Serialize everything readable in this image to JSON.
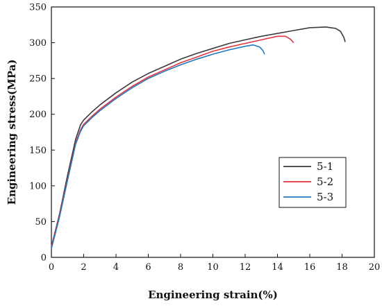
{
  "chart_data": {
    "type": "line",
    "title": "",
    "xlabel": "Engineering strain(%)",
    "ylabel": "Engineering stress(MPa)",
    "xlim": [
      0,
      20
    ],
    "ylim": [
      0,
      350
    ],
    "xticks": [
      0,
      2,
      4,
      6,
      8,
      10,
      12,
      14,
      16,
      18,
      20
    ],
    "yticks": [
      0,
      50,
      100,
      150,
      200,
      250,
      300,
      350
    ],
    "grid": false,
    "legend_position": "right",
    "series": [
      {
        "name": "5-1",
        "color": "#3a3a3a",
        "x": [
          0,
          0.5,
          1.0,
          1.5,
          1.8,
          2.0,
          2.5,
          3,
          4,
          5,
          6,
          7,
          8,
          9,
          10,
          11,
          12,
          13,
          14,
          15,
          16,
          17,
          17.6,
          17.9,
          18.1,
          18.2
        ],
        "y": [
          15,
          60,
          115,
          165,
          185,
          192,
          203,
          213,
          230,
          245,
          257,
          267,
          277,
          285,
          292,
          299,
          304,
          309,
          313,
          317,
          321,
          322,
          320,
          316,
          308,
          301
        ]
      },
      {
        "name": "5-2",
        "color": "#e8323c",
        "x": [
          0,
          0.5,
          1.0,
          1.5,
          1.8,
          2.0,
          2.5,
          3,
          4,
          5,
          6,
          7,
          8,
          9,
          10,
          11,
          12,
          13,
          14,
          14.5,
          14.8,
          15.0
        ],
        "y": [
          15,
          58,
          110,
          160,
          178,
          186,
          197,
          207,
          224,
          239,
          252,
          262,
          272,
          280,
          288,
          294,
          299,
          304,
          309,
          309,
          305,
          300
        ]
      },
      {
        "name": "5-3",
        "color": "#1f78c4",
        "x": [
          0,
          0.5,
          1.0,
          1.5,
          1.8,
          2.0,
          2.5,
          3,
          4,
          5,
          6,
          7,
          8,
          9,
          10,
          11,
          12,
          12.5,
          12.9,
          13.1,
          13.2
        ],
        "y": [
          12,
          56,
          108,
          158,
          176,
          184,
          195,
          205,
          222,
          237,
          250,
          260,
          269,
          277,
          284,
          290,
          295,
          297,
          294,
          289,
          284
        ]
      }
    ]
  }
}
